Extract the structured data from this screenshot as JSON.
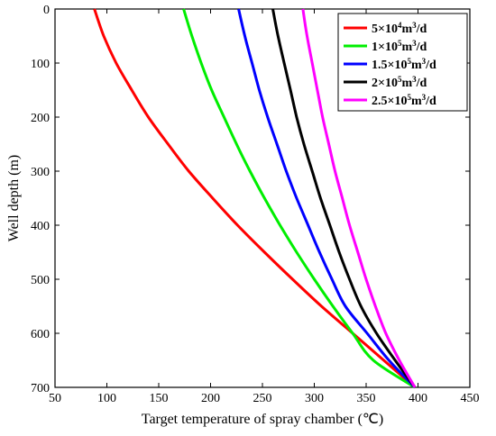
{
  "chart_data": {
    "type": "line",
    "xlabel": "Target temperature of spray chamber (℃)",
    "ylabel": "Well depth  (m)",
    "xlim": [
      50,
      450
    ],
    "ylim": [
      0,
      700
    ],
    "y_inverted": true,
    "x_ticks": [
      50,
      100,
      150,
      200,
      250,
      300,
      350,
      400,
      450
    ],
    "y_ticks": [
      0,
      100,
      200,
      300,
      400,
      500,
      600,
      700
    ],
    "grid": false,
    "legend_position": "top-right",
    "series": [
      {
        "name": "5×10⁴m³/d",
        "legend": {
          "base": "5×10",
          "exp1": "4",
          "mid": "m",
          "exp2": "3",
          "tail": "/d"
        },
        "color": "#ff0000",
        "points": [
          [
            88,
            0
          ],
          [
            97,
            50
          ],
          [
            109,
            100
          ],
          [
            124,
            150
          ],
          [
            140,
            200
          ],
          [
            159,
            250
          ],
          [
            179,
            300
          ],
          [
            202,
            350
          ],
          [
            226,
            400
          ],
          [
            252,
            450
          ],
          [
            279,
            500
          ],
          [
            307,
            550
          ],
          [
            337,
            600
          ],
          [
            367,
            650
          ],
          [
            397,
            700
          ]
        ]
      },
      {
        "name": "1×10⁵m³/d",
        "legend": {
          "base": "1×10",
          "exp1": "5",
          "mid": "m",
          "exp2": "3",
          "tail": "/d"
        },
        "color": "#00ee00",
        "points": [
          [
            174,
            0
          ],
          [
            182,
            50
          ],
          [
            191,
            100
          ],
          [
            201,
            150
          ],
          [
            213,
            200
          ],
          [
            225,
            250
          ],
          [
            238,
            300
          ],
          [
            252,
            350
          ],
          [
            267,
            400
          ],
          [
            283,
            450
          ],
          [
            300,
            500
          ],
          [
            318,
            550
          ],
          [
            337,
            600
          ],
          [
            357,
            650
          ],
          [
            397,
            700
          ]
        ]
      },
      {
        "name": "1.5×10⁵m³/d",
        "legend": {
          "base": "1.5×10",
          "exp1": "5",
          "mid": "m",
          "exp2": "3",
          "tail": "/d"
        },
        "color": "#0000ff",
        "points": [
          [
            227,
            0
          ],
          [
            233,
            50
          ],
          [
            240,
            100
          ],
          [
            247,
            150
          ],
          [
            255,
            200
          ],
          [
            264,
            250
          ],
          [
            273,
            300
          ],
          [
            283,
            350
          ],
          [
            294,
            400
          ],
          [
            305,
            450
          ],
          [
            317,
            500
          ],
          [
            330,
            550
          ],
          [
            351,
            600
          ],
          [
            372,
            650
          ],
          [
            397,
            700
          ]
        ]
      },
      {
        "name": "2×10⁵m³/d",
        "legend": {
          "base": "2×10",
          "exp1": "5",
          "mid": "m",
          "exp2": "3",
          "tail": "/d"
        },
        "color": "#000000",
        "points": [
          [
            260,
            0
          ],
          [
            265,
            50
          ],
          [
            271,
            100
          ],
          [
            277,
            150
          ],
          [
            283,
            200
          ],
          [
            290,
            250
          ],
          [
            298,
            300
          ],
          [
            306,
            350
          ],
          [
            315,
            400
          ],
          [
            324,
            450
          ],
          [
            334,
            500
          ],
          [
            345,
            550
          ],
          [
            360,
            600
          ],
          [
            378,
            650
          ],
          [
            397,
            700
          ]
        ]
      },
      {
        "name": "2.5×10⁵m³/d",
        "legend": {
          "base": "2.5×10",
          "exp1": "5",
          "mid": "m",
          "exp2": "3",
          "tail": "/d"
        },
        "color": "#ff00ff",
        "points": [
          [
            289,
            0
          ],
          [
            293,
            50
          ],
          [
            298,
            100
          ],
          [
            303,
            150
          ],
          [
            308,
            200
          ],
          [
            314,
            250
          ],
          [
            320,
            300
          ],
          [
            327,
            350
          ],
          [
            334,
            400
          ],
          [
            342,
            450
          ],
          [
            350,
            500
          ],
          [
            359,
            550
          ],
          [
            369,
            600
          ],
          [
            382,
            650
          ],
          [
            397,
            700
          ]
        ]
      }
    ]
  }
}
